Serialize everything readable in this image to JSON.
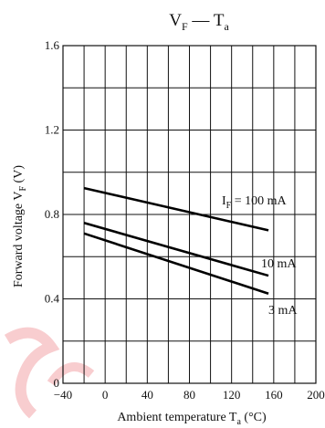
{
  "chart_data": {
    "type": "line",
    "title": {
      "v": "V",
      "v_sub": "F",
      "dash": " — ",
      "t": "T",
      "t_sub": "a"
    },
    "xlabel": {
      "text": "Ambient temperature  T",
      "sub": "a",
      "unit": "  (°C)"
    },
    "ylabel": {
      "text": "Forward voltage  V",
      "sub": "F",
      "unit": "  (V)"
    },
    "xlim": [
      -40,
      200
    ],
    "ylim": [
      0,
      1.6
    ],
    "x_ticks": [
      -40,
      0,
      40,
      80,
      120,
      160,
      200
    ],
    "y_ticks": [
      0,
      0.4,
      0.8,
      1.2,
      1.6
    ],
    "x_tick_labels": [
      "−40",
      "0",
      "40",
      "80",
      "120",
      "160",
      "200"
    ],
    "y_tick_labels": [
      "0",
      "0.4",
      "0.8",
      "1.2",
      "1.6"
    ],
    "grid": true,
    "series": [
      {
        "name": "I_F = 100 mA",
        "label_main": "I",
        "label_sub": "F",
        "label_rest": " = 100 mA",
        "x": [
          -20,
          155
        ],
        "y": [
          0.925,
          0.725
        ]
      },
      {
        "name": "10 mA",
        "label_main": "10 mA",
        "label_sub": "",
        "label_rest": "",
        "x": [
          -20,
          155
        ],
        "y": [
          0.76,
          0.51
        ]
      },
      {
        "name": "3 mA",
        "label_main": "3 mA",
        "label_sub": "",
        "label_rest": "",
        "x": [
          -20,
          155
        ],
        "y": [
          0.71,
          0.425
        ]
      }
    ]
  }
}
